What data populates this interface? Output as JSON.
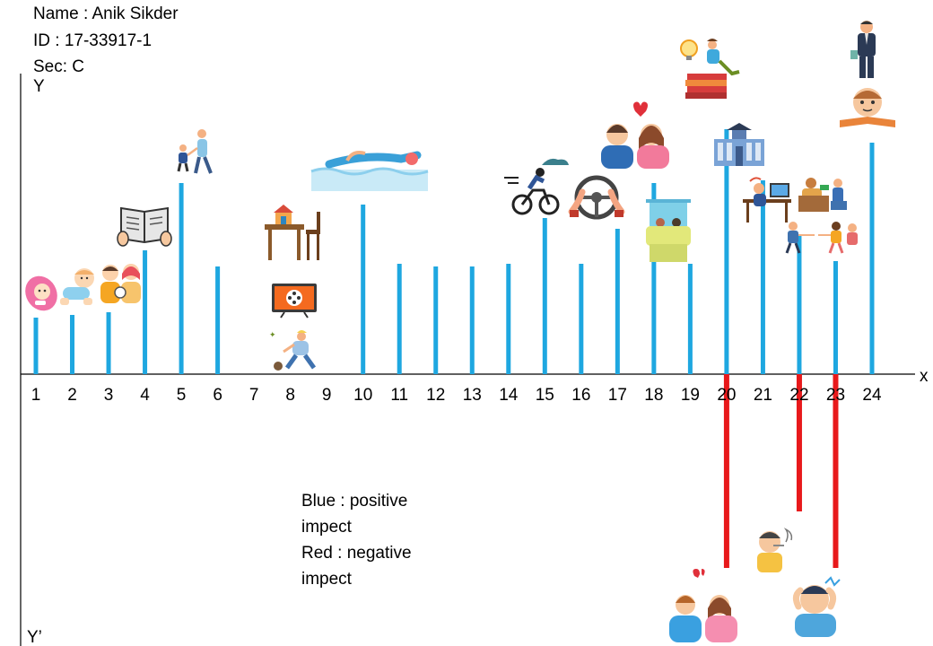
{
  "header": {
    "name_line": "Name : Anik Sikder",
    "id_line": "ID : 17-33917-1",
    "sec_line": "Sec: C"
  },
  "legend": {
    "blue_line1": "Blue : positive",
    "blue_line2": "impect",
    "red_line1": "Red : negative",
    "red_line2": "impect"
  },
  "colors": {
    "positive": "#1ea7e0",
    "negative": "#e8191b",
    "axis": "#000000"
  },
  "chart_data": {
    "type": "bar",
    "xlabel": "x",
    "ylabel": "Y",
    "ylabel_negative": "Y’",
    "ylim": [
      -10,
      10
    ],
    "categories": [
      "1",
      "2",
      "3",
      "4",
      "5",
      "6",
      "7",
      "8",
      "9",
      "10",
      "11",
      "12",
      "13",
      "14",
      "15",
      "16",
      "17",
      "18",
      "19",
      "20",
      "21",
      "22",
      "23",
      "24"
    ],
    "series": [
      {
        "key": "positive",
        "name": "Blue : positive impect",
        "color": "#1ea7e0",
        "points": [
          {
            "x": "1",
            "y": 2.1
          },
          {
            "x": "2",
            "y": 2.2
          },
          {
            "x": "3",
            "y": 2.3
          },
          {
            "x": "4",
            "y": 4.6
          },
          {
            "x": "5",
            "y": 7.1
          },
          {
            "x": "6",
            "y": 4.0
          },
          {
            "x": "10",
            "y": 6.3
          },
          {
            "x": "11",
            "y": 4.1
          },
          {
            "x": "12",
            "y": 4.0
          },
          {
            "x": "13",
            "y": 4.0
          },
          {
            "x": "14",
            "y": 4.1
          },
          {
            "x": "15",
            "y": 5.8
          },
          {
            "x": "16",
            "y": 4.1
          },
          {
            "x": "17",
            "y": 5.4
          },
          {
            "x": "18",
            "y": 7.1
          },
          {
            "x": "19",
            "y": 4.1
          },
          {
            "x": "20",
            "y": 9.1
          },
          {
            "x": "21",
            "y": 7.2
          },
          {
            "x": "22",
            "y": 5.2
          },
          {
            "x": "23",
            "y": 4.2
          },
          {
            "x": "24",
            "y": 8.6
          }
        ]
      },
      {
        "key": "negative",
        "name": "Red : negative impect",
        "color": "#e8191b",
        "points": [
          {
            "x": "20",
            "y": -7.2
          },
          {
            "x": "22",
            "y": -5.1
          },
          {
            "x": "23",
            "y": -7.2
          }
        ]
      }
    ],
    "icons": [
      "baby-icon",
      "crawling-baby-icon",
      "parents-icon",
      "reading-book-icon",
      "walking-with-parent-icon",
      "toy-house-icon",
      "television-icon",
      "playing-ball-icon",
      "swimming-icon",
      "cycling-icon",
      "steering-wheel-icon",
      "couple-love-icon",
      "travel-window-icon",
      "studying-books-icon",
      "university-building-icon",
      "office-work-icon",
      "shopping-icon",
      "friends-walking-icon",
      "businessman-icon",
      "reading-boy-icon",
      "broken-heart-couple-icon",
      "smoking-man-icon",
      "stressed-man-icon"
    ]
  }
}
